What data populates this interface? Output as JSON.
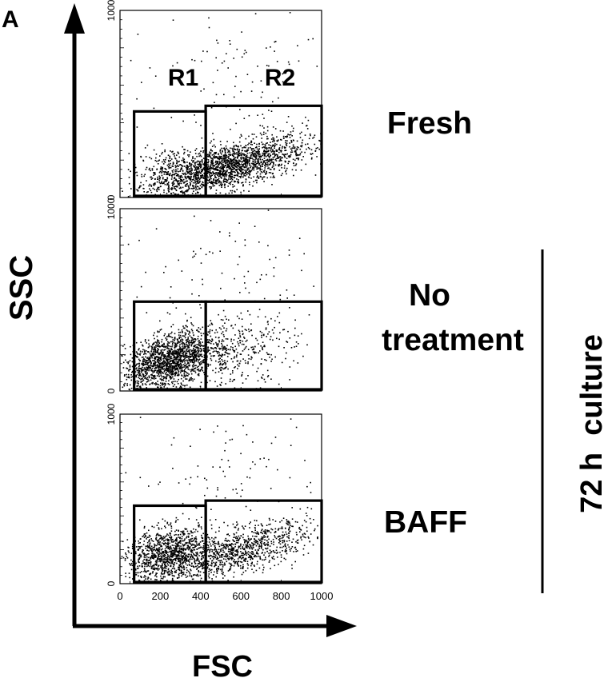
{
  "panel_label": "A",
  "y_axis_label": "SSC",
  "x_axis_label": "FSC",
  "gate_labels": [
    "R1",
    "R2"
  ],
  "group_label": "72 h  culture",
  "colors": {
    "ink": "#000000",
    "background": "#ffffff"
  },
  "chart_data": [
    {
      "type": "scatter",
      "condition": "Fresh",
      "xlim": [
        0,
        1000
      ],
      "ylim": [
        0,
        1000
      ],
      "y_ticks": [
        "0",
        "1000"
      ],
      "gates": [
        {
          "name": "R1",
          "x": [
            70,
            425
          ],
          "y": [
            0,
            460
          ]
        },
        {
          "name": "R2",
          "x": [
            425,
            1010
          ],
          "y": [
            0,
            490
          ]
        }
      ],
      "populations": [
        {
          "cx": 540,
          "cy": 170,
          "sx": 190,
          "sy": 60,
          "slope": 0.25,
          "n": 1900
        },
        {
          "cx": 260,
          "cy": 130,
          "sx": 90,
          "sy": 70,
          "slope": 0,
          "n": 300
        },
        {
          "cx": 550,
          "cy": 600,
          "sx": 270,
          "sy": 200,
          "slope": 0,
          "n": 120
        }
      ]
    },
    {
      "type": "scatter",
      "condition": "No treatment",
      "xlim": [
        0,
        1000
      ],
      "ylim": [
        0,
        1000
      ],
      "y_ticks": [
        "0",
        "1000"
      ],
      "gates": [
        {
          "name": "R1",
          "x": [
            70,
            425
          ],
          "y": [
            0,
            490
          ]
        },
        {
          "name": "R2",
          "x": [
            425,
            1010
          ],
          "y": [
            0,
            490
          ]
        }
      ],
      "populations": [
        {
          "cx": 240,
          "cy": 170,
          "sx": 110,
          "sy": 70,
          "slope": 0.3,
          "n": 1500
        },
        {
          "cx": 500,
          "cy": 200,
          "sx": 180,
          "sy": 100,
          "slope": 0.2,
          "n": 500
        },
        {
          "cx": 550,
          "cy": 620,
          "sx": 270,
          "sy": 220,
          "slope": 0,
          "n": 110
        }
      ]
    },
    {
      "type": "scatter",
      "condition": "BAFF",
      "xlim": [
        0,
        1000
      ],
      "ylim": [
        0,
        1000
      ],
      "y_ticks": [
        "0",
        "1000"
      ],
      "x_ticks": [
        "0",
        "200",
        "400",
        "600",
        "800",
        "1000"
      ],
      "gates": [
        {
          "name": "R1",
          "x": [
            70,
            425
          ],
          "y": [
            0,
            460
          ]
        },
        {
          "name": "R2",
          "x": [
            425,
            1010
          ],
          "y": [
            0,
            490
          ]
        }
      ],
      "populations": [
        {
          "cx": 240,
          "cy": 180,
          "sx": 110,
          "sy": 75,
          "slope": 0.2,
          "n": 1100
        },
        {
          "cx": 600,
          "cy": 200,
          "sx": 170,
          "sy": 65,
          "slope": 0.3,
          "n": 950
        },
        {
          "cx": 560,
          "cy": 620,
          "sx": 280,
          "sy": 230,
          "slope": 0,
          "n": 110
        }
      ]
    }
  ]
}
